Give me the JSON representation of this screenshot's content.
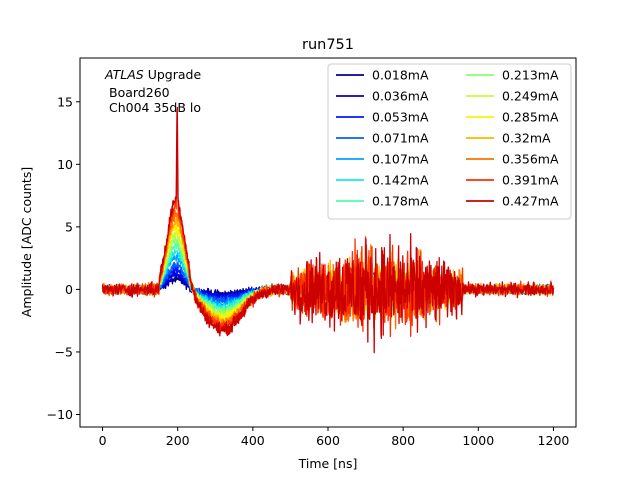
{
  "chart_data": {
    "type": "line",
    "title": "run751",
    "xlabel": "Time [ns]",
    "ylabel": "Amplitude [ADC counts]",
    "xlim": [
      -60,
      1260
    ],
    "ylim": [
      -11,
      18.5
    ],
    "xticks": [
      0,
      200,
      400,
      600,
      800,
      1000,
      1200
    ],
    "yticks": [
      -10,
      -5,
      0,
      5,
      10,
      15
    ],
    "grid": false,
    "legend_position": "top-right",
    "legend_columns": 2,
    "annotation": {
      "line1_italic": "ATLAS",
      "line1_rest": " Upgrade",
      "line2": "Board260",
      "line3": "Ch004 35dB lo"
    },
    "series": [
      {
        "name": "0.018mA",
        "color": "#00008f",
        "pulse_peak": 0.8,
        "noise": 0.8
      },
      {
        "name": "0.036mA",
        "color": "#0000d4",
        "pulse_peak": 1.2,
        "noise": 0.8
      },
      {
        "name": "0.053mA",
        "color": "#0018ff",
        "pulse_peak": 1.6,
        "noise": 0.9
      },
      {
        "name": "0.071mA",
        "color": "#0060ff",
        "pulse_peak": 2.0,
        "noise": 0.9
      },
      {
        "name": "0.107mA",
        "color": "#00a4ff",
        "pulse_peak": 2.6,
        "noise": 1.0
      },
      {
        "name": "0.142mA",
        "color": "#10ebe6",
        "pulse_peak": 3.0,
        "noise": 1.0
      },
      {
        "name": "0.178mA",
        "color": "#4dffaa",
        "pulse_peak": 3.5,
        "noise": 1.1
      },
      {
        "name": "0.213mA",
        "color": "#87ff70",
        "pulse_peak": 4.0,
        "noise": 1.2
      },
      {
        "name": "0.249mA",
        "color": "#c1ff36",
        "pulse_peak": 4.5,
        "noise": 1.4
      },
      {
        "name": "0.285mA",
        "color": "#f8f500",
        "pulse_peak": 5.0,
        "noise": 1.6
      },
      {
        "name": "0.32mA",
        "color": "#ffb600",
        "pulse_peak": 5.5,
        "noise": 2.0
      },
      {
        "name": "0.356mA",
        "color": "#ff7200",
        "pulse_peak": 6.0,
        "noise": 2.4
      },
      {
        "name": "0.391mA",
        "color": "#ff3000",
        "pulse_peak": 6.6,
        "noise": 2.8
      },
      {
        "name": "0.427mA",
        "color": "#cc0000",
        "pulse_peak": 7.2,
        "noise": 3.2
      }
    ]
  }
}
